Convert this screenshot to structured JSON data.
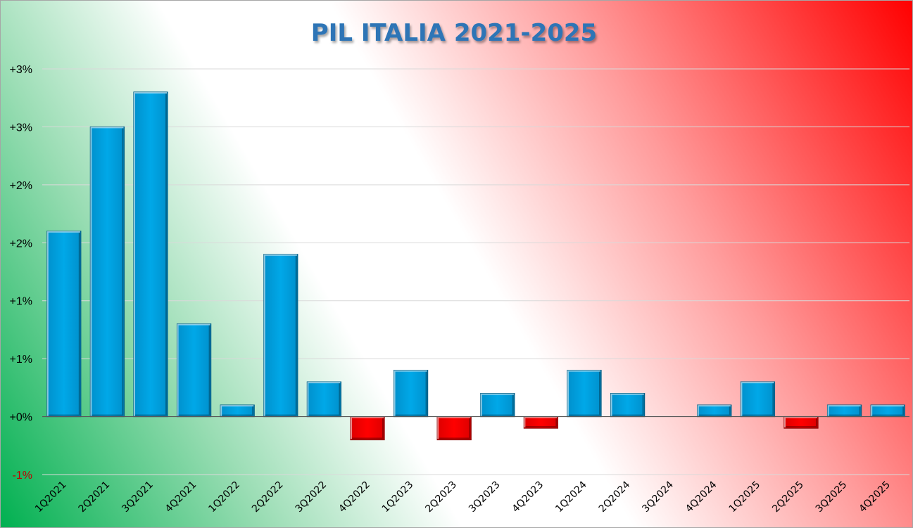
{
  "chart_data": {
    "type": "bar",
    "title": "PIL ITALIA 2021-2025",
    "xlabel": "",
    "ylabel": "",
    "categories": [
      "1Q2021",
      "2Q2021",
      "3Q2021",
      "4Q2021",
      "1Q2022",
      "2Q2022",
      "3Q2022",
      "4Q2022",
      "1Q2023",
      "2Q2023",
      "3Q2023",
      "4Q2023",
      "1Q2024",
      "2Q2024",
      "3Q2024",
      "4Q2024",
      "1Q2025",
      "2Q2025",
      "3Q2025",
      "4Q2025"
    ],
    "values": [
      1.6,
      2.5,
      2.8,
      0.8,
      0.1,
      1.4,
      0.3,
      -0.2,
      0.4,
      -0.2,
      0.2,
      -0.1,
      0.4,
      0.2,
      0.0,
      0.1,
      0.3,
      -0.1,
      0.1,
      0.1
    ],
    "ylim": [
      -0.5,
      3.0
    ],
    "y_ticks": [
      {
        "value": 3.0,
        "label": "+3%"
      },
      {
        "value": 2.5,
        "label": "+3%"
      },
      {
        "value": 2.0,
        "label": "+2%"
      },
      {
        "value": 1.5,
        "label": "+2%"
      },
      {
        "value": 1.0,
        "label": "+1%"
      },
      {
        "value": 0.5,
        "label": "+1%"
      },
      {
        "value": 0.0,
        "label": "+0%"
      },
      {
        "value": -0.5,
        "label": "-1%"
      }
    ],
    "grid": true,
    "legend": "none",
    "colors": {
      "positive": "#00A2E0",
      "negative": "#FF0000",
      "title": "#2E75B6",
      "negative_tick": "#C00000",
      "gridline": "#D9D9D9",
      "background_green": "#00B050",
      "background_red": "#FF0000"
    }
  }
}
